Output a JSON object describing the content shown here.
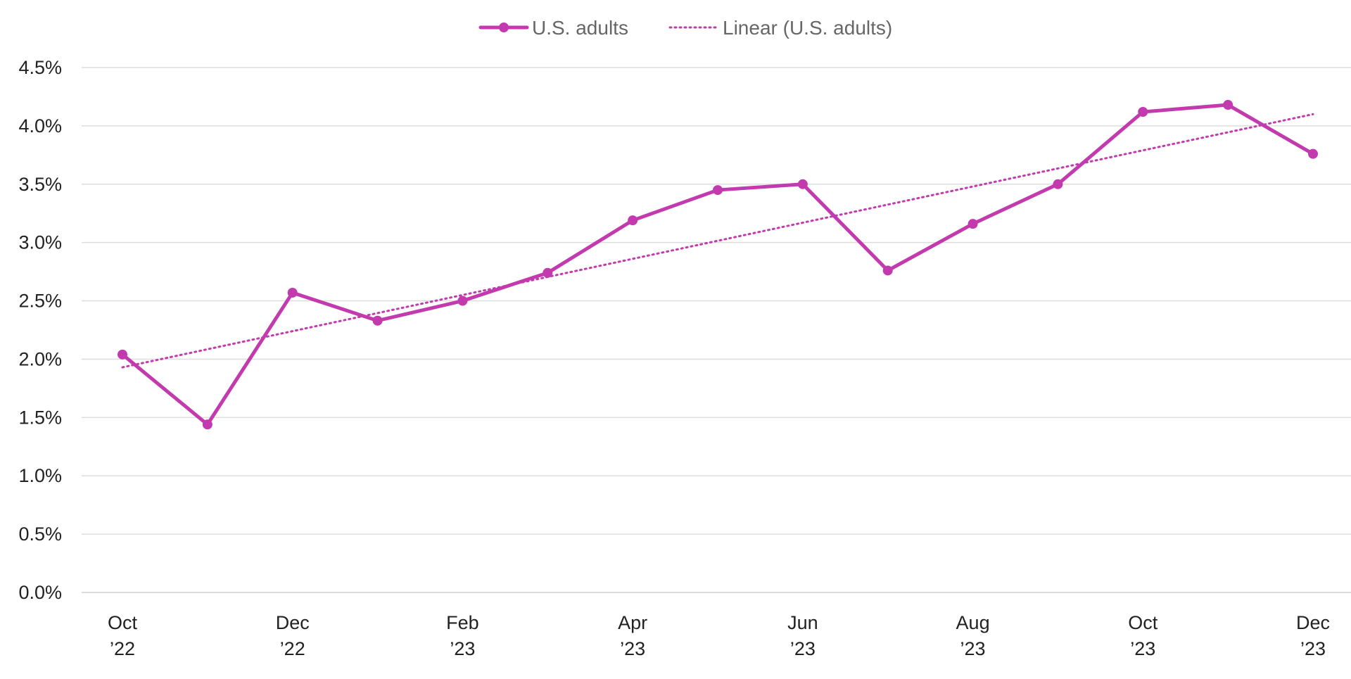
{
  "chart_data": {
    "type": "line",
    "title": "",
    "xlabel": "",
    "ylabel": "",
    "x": [
      "Oct '22",
      "Nov '22",
      "Dec '22",
      "Jan '23",
      "Feb '23",
      "Mar '23",
      "Apr '23",
      "May '23",
      "Jun '23",
      "Jul '23",
      "Aug '23",
      "Sep '23",
      "Oct '23",
      "Nov '23",
      "Dec '23"
    ],
    "x_tick_labels": [
      {
        "index": 0,
        "line1": "Oct",
        "line2": "’22"
      },
      {
        "index": 2,
        "line1": "Dec",
        "line2": "’22"
      },
      {
        "index": 4,
        "line1": "Feb",
        "line2": "’23"
      },
      {
        "index": 6,
        "line1": "Apr",
        "line2": "’23"
      },
      {
        "index": 8,
        "line1": "Jun",
        "line2": "’23"
      },
      {
        "index": 10,
        "line1": "Aug",
        "line2": "’23"
      },
      {
        "index": 12,
        "line1": "Oct",
        "line2": "’23"
      },
      {
        "index": 14,
        "line1": "Dec",
        "line2": "’23"
      }
    ],
    "y_ticks": [
      0.0,
      0.5,
      1.0,
      1.5,
      2.0,
      2.5,
      3.0,
      3.5,
      4.0,
      4.5
    ],
    "y_tick_labels": [
      "0.0%",
      "0.5%",
      "1.0%",
      "1.5%",
      "2.0%",
      "2.5%",
      "3.0%",
      "3.5%",
      "4.0%",
      "4.5%"
    ],
    "ylim": [
      0,
      4.5
    ],
    "grid": true,
    "legend_position": "top-center",
    "series": [
      {
        "name": "U.S. adults",
        "color": "#C23AAE",
        "style": "solid-with-markers",
        "values": [
          2.04,
          1.44,
          2.57,
          2.33,
          2.5,
          2.74,
          3.19,
          3.45,
          3.5,
          2.76,
          3.16,
          3.5,
          4.12,
          4.18,
          3.76
        ]
      },
      {
        "name": "Linear (U.S. adults)",
        "color": "#C23AAE",
        "style": "dotted-trendline",
        "trend_start": 1.93,
        "trend_end": 4.1
      }
    ]
  }
}
